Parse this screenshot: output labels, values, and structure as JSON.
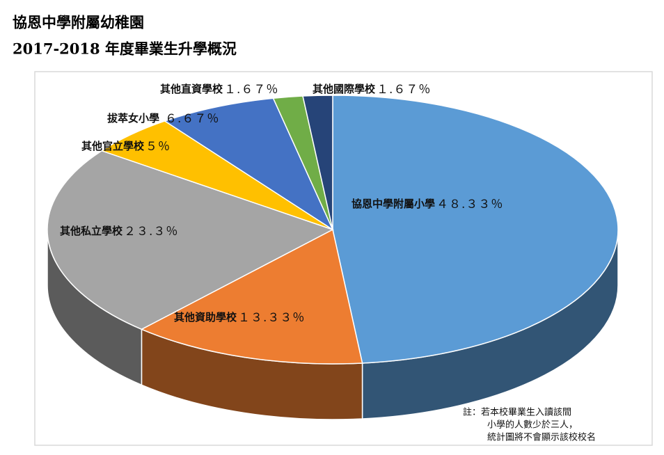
{
  "chart_data": {
    "type": "pie3d",
    "title": "協恩中學附屬幼稚園",
    "subtitle": "2017-2018 年度畢業生升學概況",
    "categories": [
      "協恩中學附屬小學",
      "其他資助學校",
      "其他私立學校",
      "其他官立學校",
      "拔萃女小學",
      "其他直資學校",
      "其他國際學校"
    ],
    "values": [
      48.33,
      13.33,
      23.3,
      5,
      6.67,
      1.67,
      1.67
    ],
    "value_labels": [
      "４８.３３％",
      "１３.３３％",
      "２３.３％",
      "５％",
      "６.６７％",
      "１.６７％",
      "１.６７％"
    ],
    "colors": [
      "#5b9bd5",
      "#ed7d31",
      "#a5a5a5",
      "#ffc000",
      "#4472c4",
      "#70ad47",
      "#264478"
    ],
    "note": [
      "註：若本校畢業生入讀該間",
      "小學的人數少於三人，",
      "統計圖將不會顯示該校校名"
    ]
  }
}
